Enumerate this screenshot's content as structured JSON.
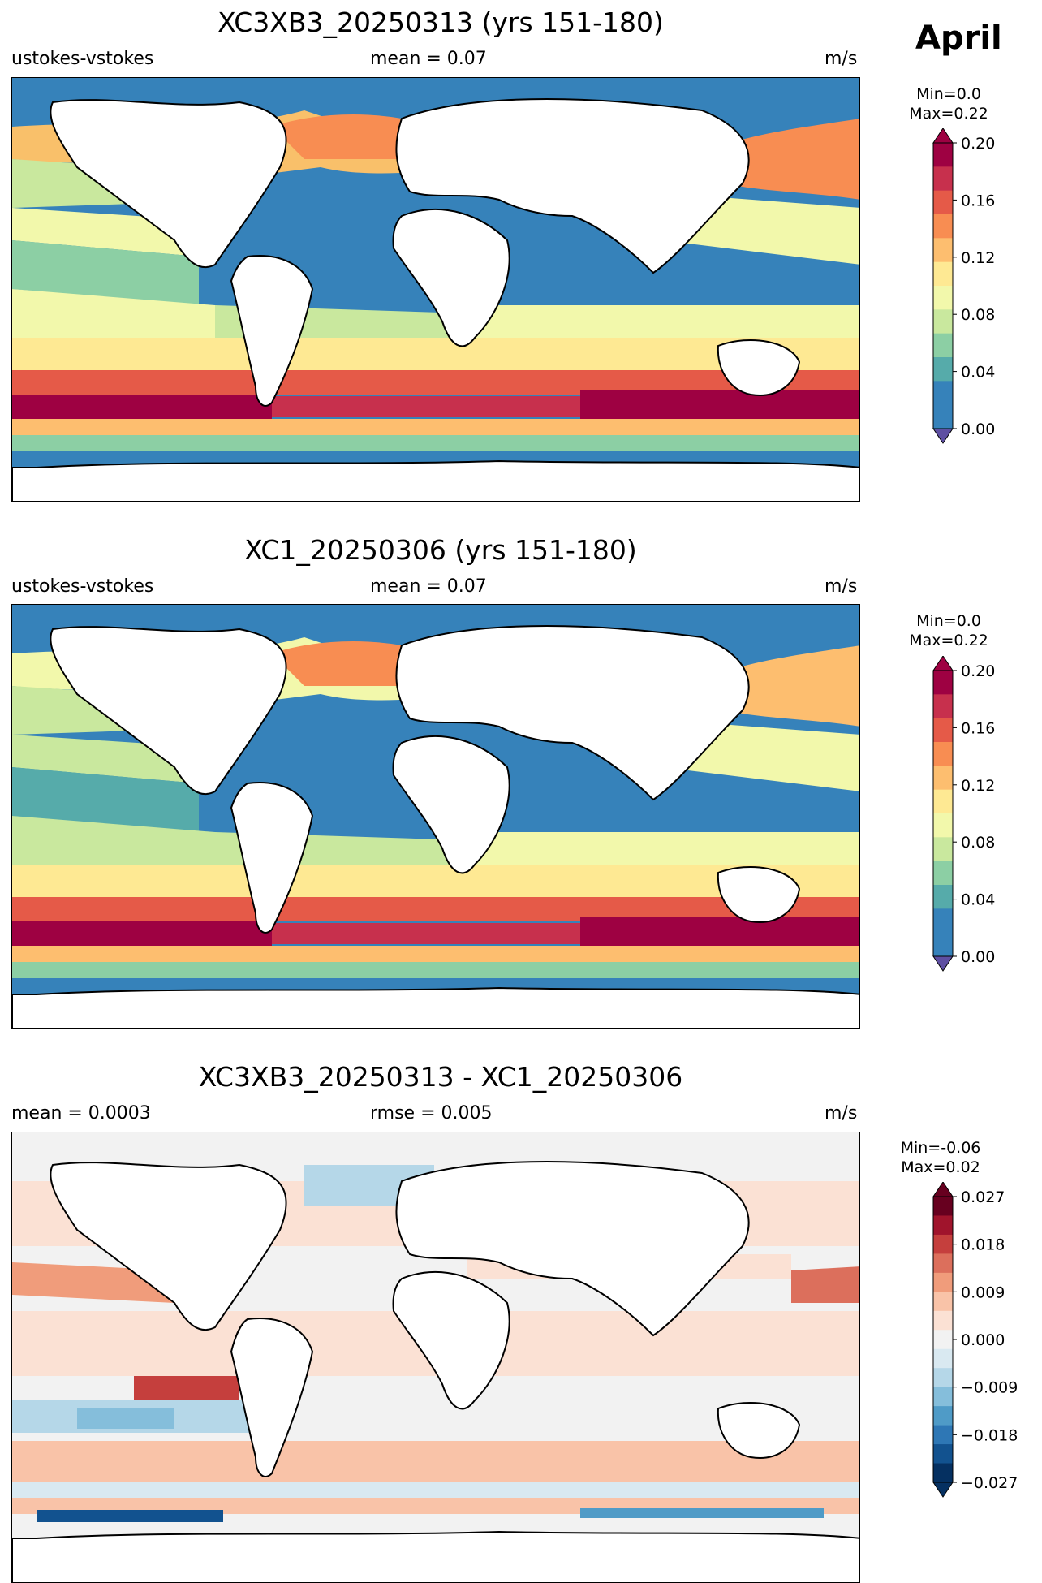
{
  "month": "April",
  "panels": [
    {
      "title": "XC3XB3_20250313 (yrs 151-180)",
      "left_label": "ustokes-vstokes",
      "center_label": "mean = 0.07",
      "units": "m/s",
      "min_label": "Min=0.0",
      "max_label": "Max=0.22",
      "colorbar": {
        "ticks": [
          "0.20",
          "0.16",
          "0.12",
          "0.08",
          "0.04",
          "0.00"
        ],
        "colors": [
          "#9e0142",
          "#c7304d",
          "#e55a48",
          "#f88d52",
          "#fdbe6f",
          "#fee993",
          "#f2f8ab",
          "#c9e89e",
          "#8ccfa4",
          "#56abaa",
          "#3682ba",
          "#3682ba"
        ]
      }
    },
    {
      "title": "XC1_20250306 (yrs 151-180)",
      "left_label": "ustokes-vstokes",
      "center_label": "mean = 0.07",
      "units": "m/s",
      "min_label": "Min=0.0",
      "max_label": "Max=0.22",
      "colorbar": {
        "ticks": [
          "0.20",
          "0.16",
          "0.12",
          "0.08",
          "0.04",
          "0.00"
        ],
        "colors": [
          "#9e0142",
          "#c7304d",
          "#e55a48",
          "#f88d52",
          "#fdbe6f",
          "#fee993",
          "#f2f8ab",
          "#c9e89e",
          "#8ccfa4",
          "#56abaa",
          "#3682ba",
          "#3682ba"
        ]
      }
    },
    {
      "title": "XC3XB3_20250313 - XC1_20250306",
      "left_label": "mean = 0.0003",
      "center_label": "rmse = 0.005",
      "units": "m/s",
      "min_label": "Min=-0.06",
      "max_label": "Max=0.02",
      "colorbar": {
        "ticks": [
          "0.027",
          "0.018",
          "0.009",
          "0.000",
          "−0.009",
          "−0.018",
          "−0.027"
        ],
        "colors": [
          "#67001f",
          "#a0142c",
          "#c53f3d",
          "#dc6f5c",
          "#f09c7b",
          "#f9c3a8",
          "#fbe1d4",
          "#f2f2f2",
          "#d9e9f1",
          "#b5d7e8",
          "#85bedb",
          "#4f9bc7",
          "#2e77b5",
          "#12528f",
          "#053061"
        ]
      }
    }
  ]
}
